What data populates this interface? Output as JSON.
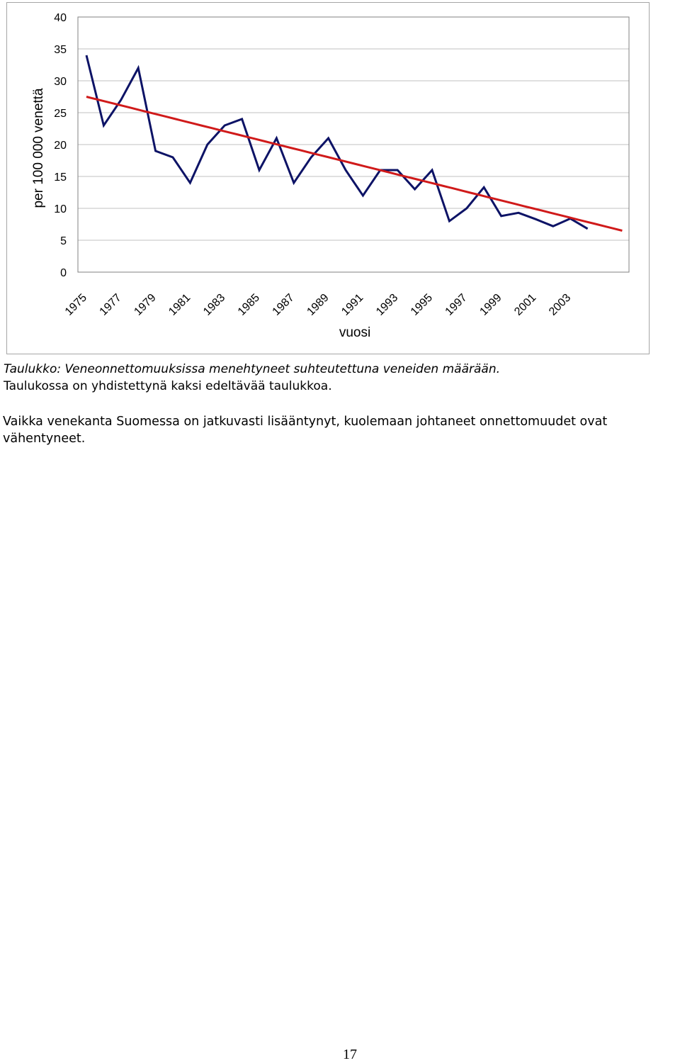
{
  "chart_data": {
    "type": "line",
    "title": "",
    "xlabel": "vuosi",
    "ylabel": "per 100 000 venettä",
    "ylim": [
      0,
      40
    ],
    "yticks": [
      0,
      5,
      10,
      15,
      20,
      25,
      30,
      35,
      40
    ],
    "xticks": [
      "1975",
      "1977",
      "1979",
      "1981",
      "1983",
      "1985",
      "1987",
      "1989",
      "1991",
      "1993",
      "1995",
      "1997",
      "1999",
      "2001",
      "2003"
    ],
    "grid": true,
    "series": [
      {
        "color": "#0d1366",
        "x": [
          1975,
          1976,
          1977,
          1978,
          1979,
          1980,
          1981,
          1982,
          1983,
          1984,
          1985,
          1986,
          1987,
          1988,
          1989,
          1990,
          1991,
          1992,
          1993,
          1994,
          1995,
          1996,
          1997,
          1998,
          1999,
          2000,
          2001,
          2002,
          2003,
          2004
        ],
        "values": [
          34,
          23,
          27,
          32,
          19,
          18,
          14,
          20,
          23,
          24,
          16,
          21,
          14,
          18,
          21,
          16,
          12,
          16,
          16,
          13,
          16,
          8,
          10,
          13.3,
          8.8,
          9.3,
          8.3,
          7.2,
          8.4,
          6.8
        ]
      },
      {
        "color": "#d01a1a",
        "x": [
          1975,
          2006
        ],
        "values": [
          27.5,
          6.5
        ]
      }
    ]
  },
  "caption": {
    "line1_italic": "Taulukko: Veneonnettomuuksissa menehtyneet suhteutettuna veneiden määrään.",
    "line2": "Taulukossa on yhdistettynä kaksi edeltävää taulukkoa."
  },
  "paragraph": "Vaikka venekanta Suomessa on jatkuvasti lisääntynyt, kuolemaan johtaneet onnettomuudet ovat vähentyneet.",
  "page_number": "17"
}
